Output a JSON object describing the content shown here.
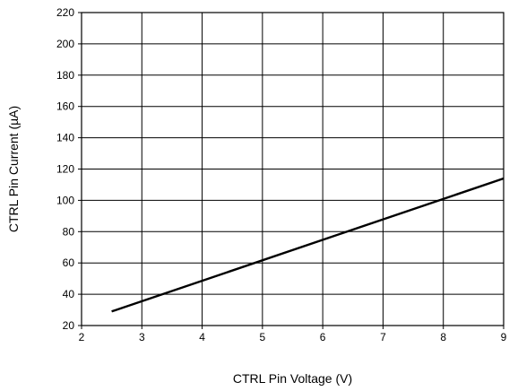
{
  "chart_data": {
    "type": "line",
    "title": "",
    "xlabel": "CTRL Pin Voltage (V)",
    "ylabel": "CTRL Pin Current (µA)",
    "xlim": [
      2,
      9
    ],
    "ylim": [
      20,
      220
    ],
    "xticks": [
      2,
      3,
      4,
      5,
      6,
      7,
      8,
      9
    ],
    "yticks": [
      20,
      40,
      60,
      80,
      100,
      120,
      140,
      160,
      180,
      200,
      220
    ],
    "grid": true,
    "legend": "none",
    "series": [
      {
        "color": "#000000",
        "x": [
          2.5,
          9
        ],
        "y": [
          29,
          114
        ]
      }
    ]
  }
}
